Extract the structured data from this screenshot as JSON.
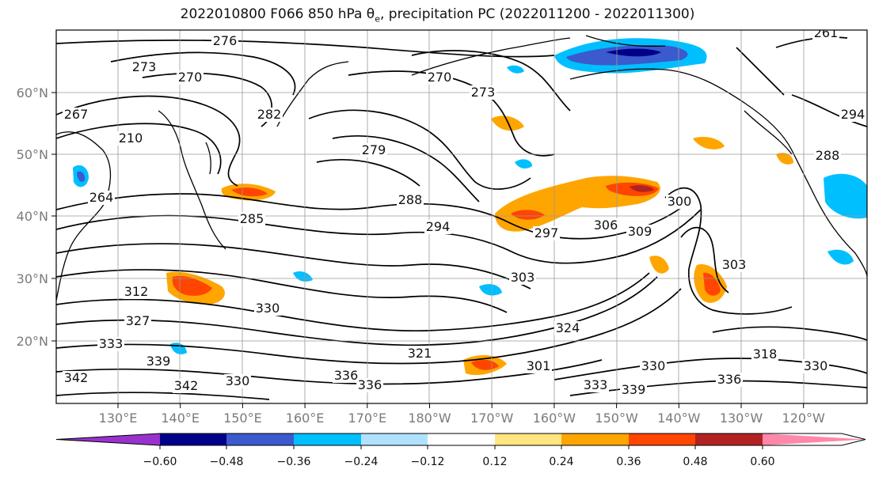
{
  "chart_data": {
    "type": "contour-map",
    "title_text": "2022010800 F066 850 hPa θe, precipitation PC (2022011200 - 2022011300)",
    "lat_ticks": [
      "60°N",
      "50°N",
      "40°N",
      "30°N",
      "20°N"
    ],
    "lon_ticks": [
      "130°E",
      "140°E",
      "150°E",
      "160°E",
      "170°E",
      "180°W",
      "170°W",
      "160°W",
      "150°W",
      "140°W",
      "130°W",
      "120°W"
    ],
    "contour_labels": [
      "276",
      "273",
      "270",
      "267",
      "210",
      "282",
      "270",
      "273",
      "279",
      "264",
      "285",
      "288",
      "294",
      "297",
      "306",
      "309",
      "300",
      "303",
      "312",
      "327",
      "330",
      "303",
      "333",
      "339",
      "342",
      "336",
      "336",
      "324",
      "301",
      "333",
      "339",
      "336",
      "318",
      "330",
      "261",
      "288",
      "294",
      "342",
      "330",
      "321",
      "330"
    ],
    "colorbar": {
      "ticks": [
        "−0.60",
        "−0.48",
        "−0.36",
        "−0.24",
        "−0.12",
        "0.12",
        "0.24",
        "0.36",
        "0.48",
        "0.60"
      ],
      "colors": [
        "#9932cc",
        "#00008b",
        "#3a5acd",
        "#00bfff",
        "#b0e2ff",
        "#ffffff",
        "#ffe680",
        "#ffa500",
        "#ff4500",
        "#b22222",
        "#ff88aa"
      ]
    }
  }
}
